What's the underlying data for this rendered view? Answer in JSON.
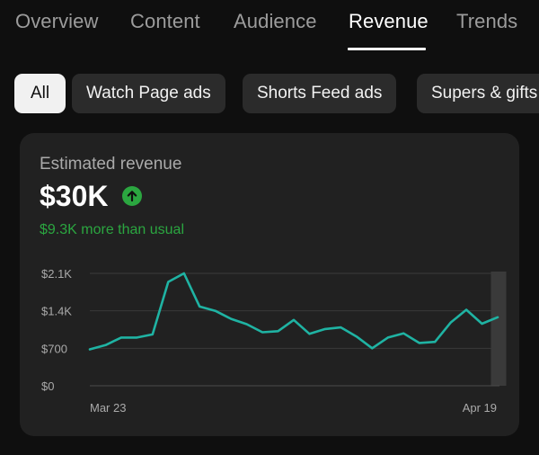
{
  "tabs": [
    {
      "label": "Overview"
    },
    {
      "label": "Content"
    },
    {
      "label": "Audience"
    },
    {
      "label": "Revenue"
    },
    {
      "label": "Trends"
    }
  ],
  "active_tab": "Revenue",
  "chips": [
    {
      "label": "All"
    },
    {
      "label": "Watch Page ads"
    },
    {
      "label": "Shorts Feed ads"
    },
    {
      "label": "Supers & gifts"
    }
  ],
  "selected_chip": "All",
  "card": {
    "title": "Estimated revenue",
    "value": "$30K",
    "trend_icon": "arrow-up-icon",
    "delta": "$9.3K more than usual"
  },
  "colors": {
    "line": "#1fb3a3",
    "positive": "#2ba640",
    "card_bg": "#212121",
    "page_bg": "#0f0f0f"
  },
  "chart_data": {
    "type": "line",
    "x_labels": [
      "Mar 23",
      "Apr 19"
    ],
    "x_start": "Mar 23",
    "x_end": "Apr 19",
    "ylim": [
      0,
      2100
    ],
    "y_ticks": [
      "$0",
      "$700",
      "$1.4K",
      "$2.1K"
    ],
    "grid": true,
    "highlight_last_point": true,
    "series": [
      {
        "values": [
          680,
          760,
          900,
          900,
          960,
          1940,
          2100,
          1480,
          1400,
          1250,
          1150,
          1000,
          1020,
          1230,
          970,
          1060,
          1090,
          920,
          700,
          900,
          980,
          800,
          820,
          1180,
          1420,
          1160,
          1280
        ]
      }
    ]
  }
}
